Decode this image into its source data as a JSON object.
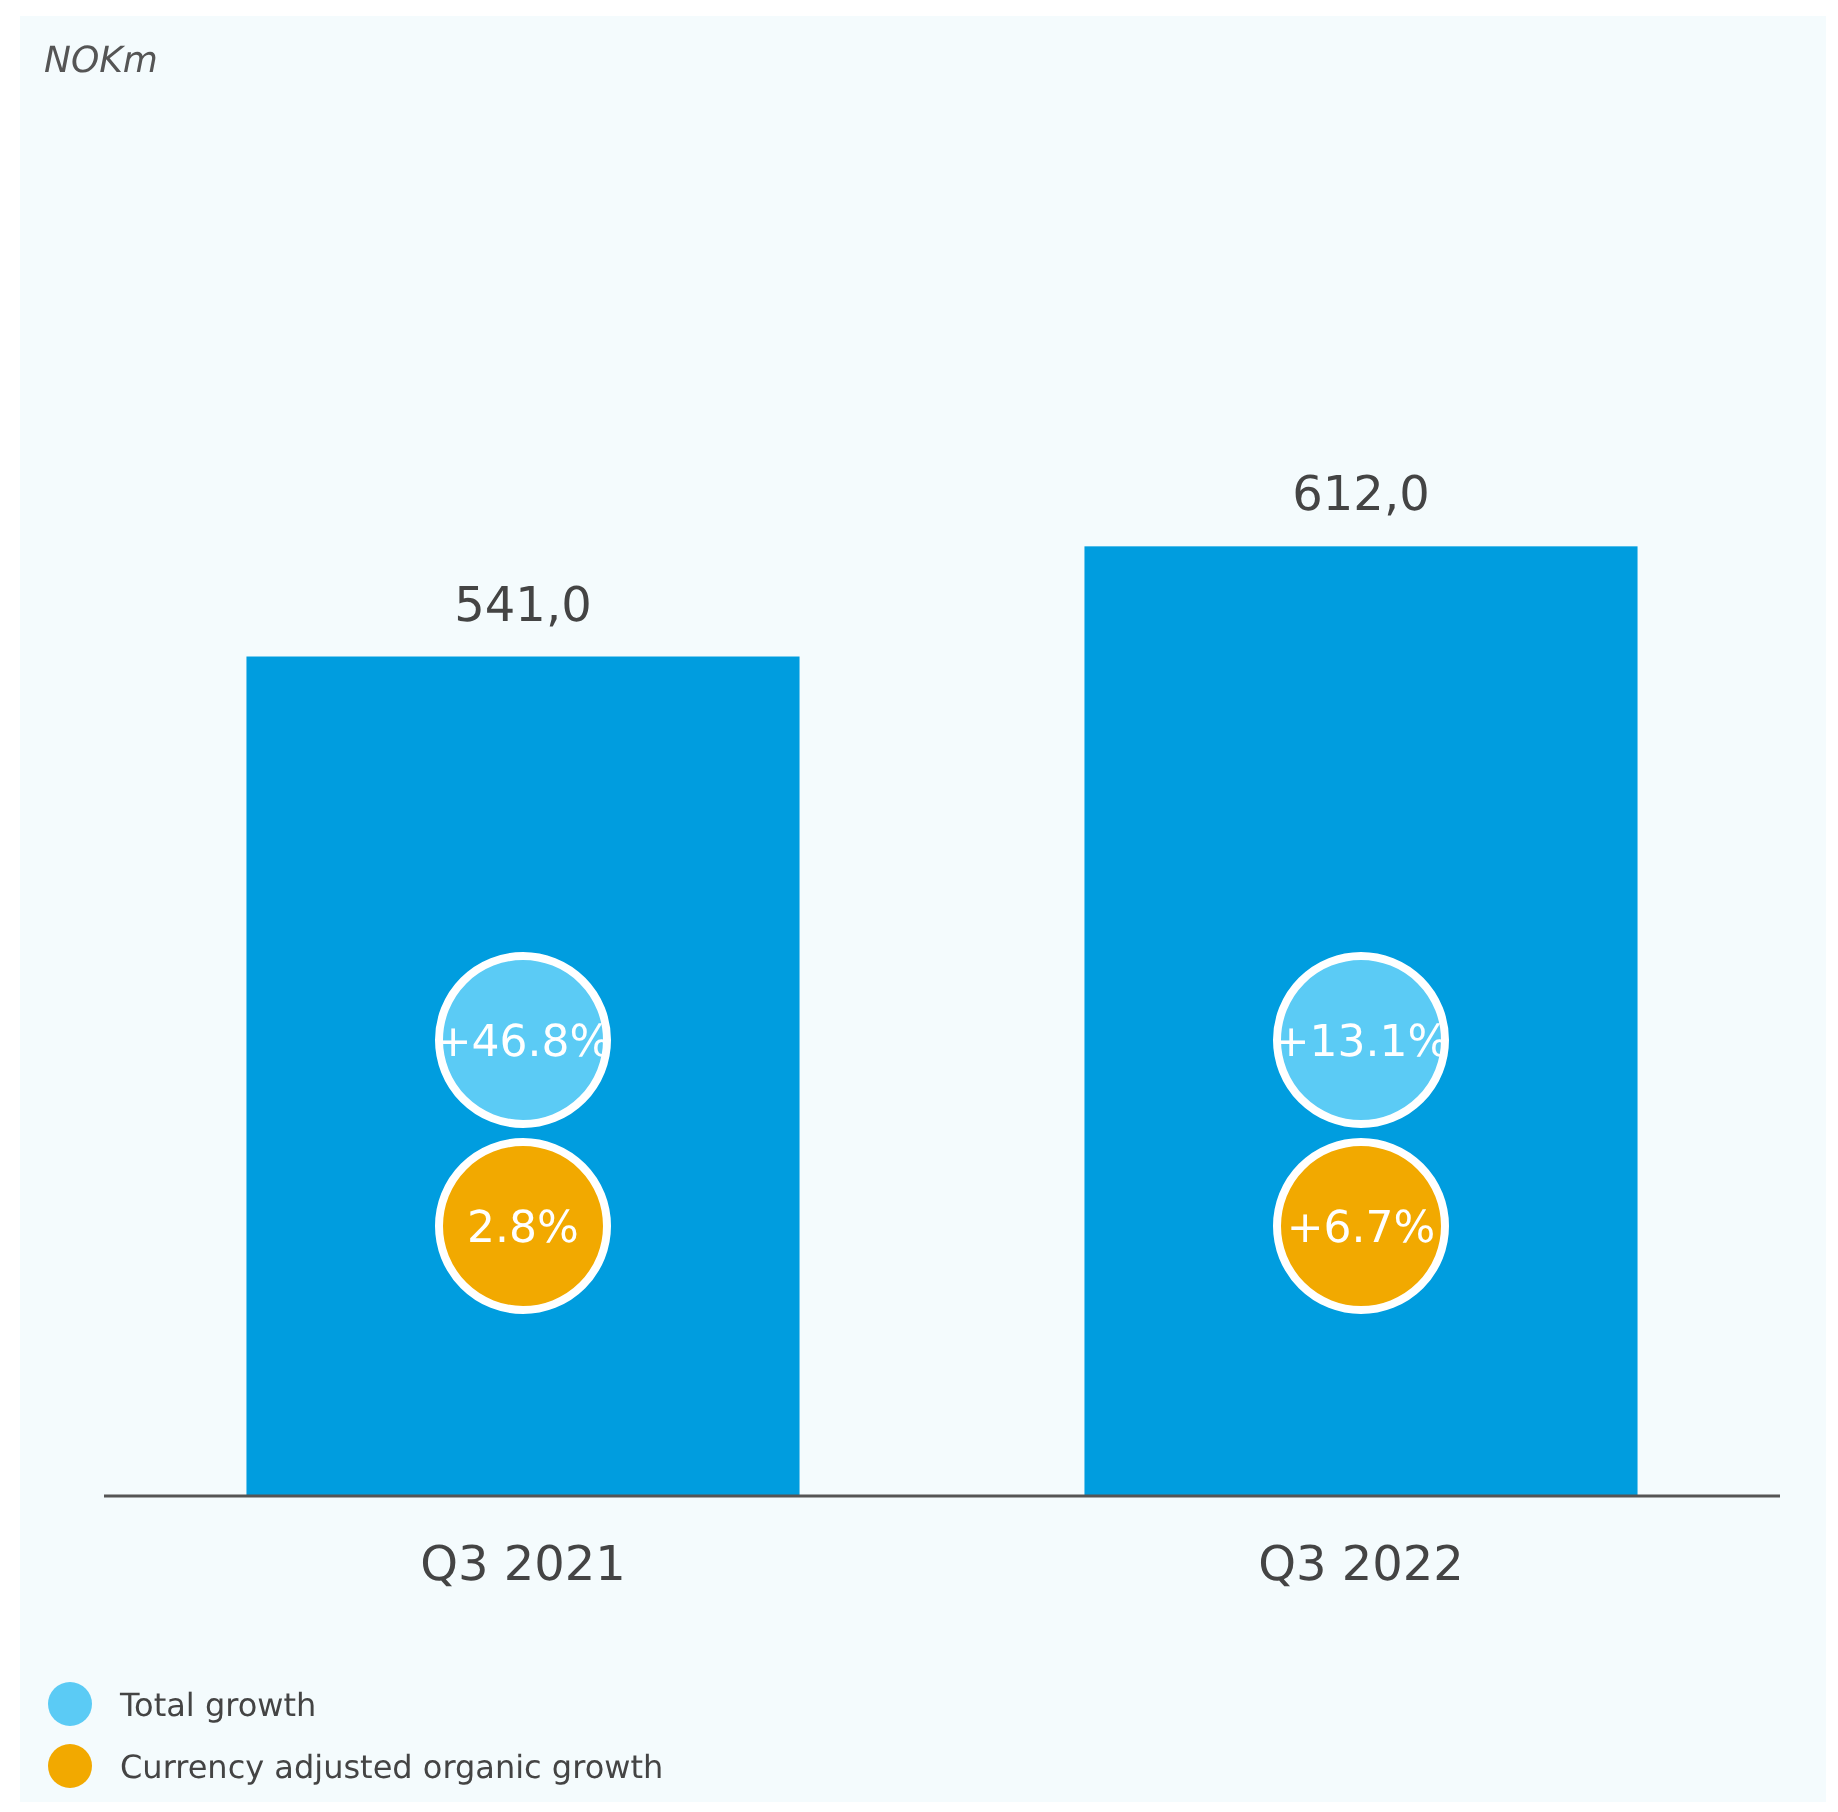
{
  "chart_data": {
    "type": "bar",
    "categories": [
      "Q3 2021",
      "Q3 2022"
    ],
    "tick_labels": "x",
    "series": [
      {
        "color": "#009ddf",
        "values": [
          541,
          612
        ],
        "value_labels": [
          "541,0",
          "612,0"
        ]
      }
    ],
    "annotations": [
      "NOKm",
      "+46.8%",
      "2.8%",
      "+13.1%",
      "+6.7%",
      "Total growth",
      "Currency adjusted organic growth"
    ]
  }
}
